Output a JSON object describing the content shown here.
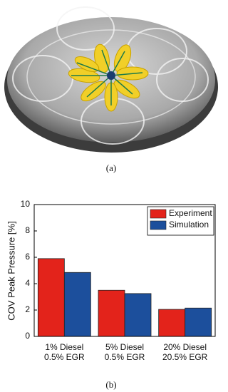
{
  "panel_labels": [
    "(a)",
    "(b)"
  ],
  "chart_data": {
    "type": "bar",
    "ylabel": "COV Peak Pressure [%]",
    "categories": [
      [
        "1% Diesel",
        "0.5% EGR"
      ],
      [
        "5% Diesel",
        "0.5% EGR"
      ],
      [
        "20% Diesel",
        "20.5% EGR"
      ]
    ],
    "series": [
      {
        "name": "Experiment",
        "color": "#e3231b",
        "values": [
          5.9,
          3.5,
          2.05
        ]
      },
      {
        "name": "Simulation",
        "color": "#1c4f9c",
        "values": [
          4.85,
          3.25,
          2.15
        ]
      }
    ],
    "ylim": [
      0,
      10
    ],
    "yticks": [
      0,
      2,
      4,
      6,
      8,
      10
    ],
    "legend": "upper right"
  }
}
